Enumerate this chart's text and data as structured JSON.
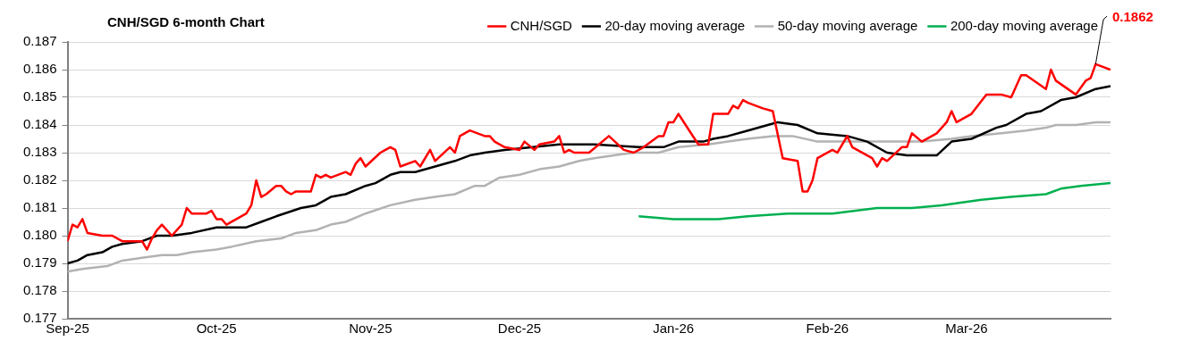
{
  "chart_data": {
    "type": "line",
    "title": "CNH/SGD 6-month Chart",
    "legend": "top right",
    "grid": "y",
    "marker": "none",
    "line_style": "solid",
    "xlim": [
      "2025-09-01",
      "2026-03-30"
    ],
    "xticks": [
      {
        "value": "2025-09-01",
        "label": "Sep-25"
      },
      {
        "value": "2025-10-01",
        "label": "Oct-25"
      },
      {
        "value": "2025-11-01",
        "label": "Nov-25"
      },
      {
        "value": "2025-12-01",
        "label": "Dec-25"
      },
      {
        "value": "2026-01-01",
        "label": "Jan-26"
      },
      {
        "value": "2026-02-01",
        "label": "Feb-26"
      },
      {
        "value": "2026-03-01",
        "label": "Mar-26"
      }
    ],
    "ylim": [
      0.177,
      0.187
    ],
    "yticks": [
      0.177,
      0.178,
      0.179,
      {
        "value": 0.18,
        "label": "0.180"
      },
      0.181,
      0.182,
      0.183,
      0.184,
      0.185,
      0.186,
      0.187
    ],
    "annotations": [
      {
        "text": "0.1862",
        "x": "2026-03-27",
        "y": 0.1862
      }
    ],
    "series": [
      {
        "name": "CNH/SGD",
        "color": "#ff0000",
        "x": [
          "2025-09-01",
          "2025-09-02",
          "2025-09-03",
          "2025-09-04",
          "2025-09-05",
          "2025-09-08",
          "2025-09-09",
          "2025-09-10",
          "2025-09-12",
          "2025-09-14",
          "2025-09-16",
          "2025-09-17",
          "2025-09-18",
          "2025-09-19",
          "2025-09-20",
          "2025-09-21",
          "2025-09-22",
          "2025-09-24",
          "2025-09-25",
          "2025-09-26",
          "2025-09-29",
          "2025-09-30",
          "2025-10-01",
          "2025-10-02",
          "2025-10-03",
          "2025-10-05",
          "2025-10-07",
          "2025-10-08",
          "2025-10-09",
          "2025-10-10",
          "2025-10-11",
          "2025-10-13",
          "2025-10-14",
          "2025-10-15",
          "2025-10-16",
          "2025-10-17",
          "2025-10-20",
          "2025-10-21",
          "2025-10-22",
          "2025-10-23",
          "2025-10-24",
          "2025-10-27",
          "2025-10-28",
          "2025-10-29",
          "2025-10-30",
          "2025-10-31",
          "2025-11-03",
          "2025-11-04",
          "2025-11-05",
          "2025-11-06",
          "2025-11-07",
          "2025-11-10",
          "2025-11-11",
          "2025-11-13",
          "2025-11-14",
          "2025-11-17",
          "2025-11-18",
          "2025-11-19",
          "2025-11-21",
          "2025-11-24",
          "2025-11-25",
          "2025-11-26",
          "2025-11-28",
          "2025-12-01",
          "2025-12-02",
          "2025-12-04",
          "2025-12-05",
          "2025-12-08",
          "2025-12-09",
          "2025-12-10",
          "2025-12-11",
          "2025-12-12",
          "2025-12-15",
          "2025-12-17",
          "2025-12-19",
          "2025-12-22",
          "2025-12-24",
          "2025-12-26",
          "2025-12-29",
          "2025-12-30",
          "2025-12-31",
          "2026-01-01",
          "2026-01-02",
          "2026-01-06",
          "2026-01-08",
          "2026-01-09",
          "2026-01-12",
          "2026-01-13",
          "2026-01-14",
          "2026-01-15",
          "2026-01-16",
          "2026-01-19",
          "2026-01-21",
          "2026-01-23",
          "2026-01-26",
          "2026-01-27",
          "2026-01-28",
          "2026-01-29",
          "2026-01-30",
          "2026-02-02",
          "2026-02-03",
          "2026-02-05",
          "2026-02-06",
          "2026-02-10",
          "2026-02-11",
          "2026-02-12",
          "2026-02-13",
          "2026-02-16",
          "2026-02-17",
          "2026-02-18",
          "2026-02-20",
          "2026-02-23",
          "2026-02-25",
          "2026-02-26",
          "2026-02-27",
          "2026-03-02",
          "2026-03-05",
          "2026-03-08",
          "2026-03-10",
          "2026-03-12",
          "2026-03-13",
          "2026-03-17",
          "2026-03-18",
          "2026-03-19",
          "2026-03-23",
          "2026-03-25",
          "2026-03-26",
          "2026-03-27",
          "2026-03-30"
        ],
        "values": [
          0.1798,
          0.1804,
          0.1803,
          0.1806,
          0.1801,
          0.18,
          0.18,
          0.18,
          0.1798,
          0.1798,
          0.1798,
          0.1795,
          0.1799,
          0.1802,
          0.1804,
          0.1802,
          0.18,
          0.1804,
          0.181,
          0.1808,
          0.1808,
          0.1809,
          0.1806,
          0.1806,
          0.1804,
          0.1806,
          0.1808,
          0.1811,
          0.182,
          0.1814,
          0.1815,
          0.1818,
          0.1818,
          0.1816,
          0.1815,
          0.1816,
          0.1816,
          0.1822,
          0.1821,
          0.1822,
          0.1821,
          0.1823,
          0.1822,
          0.1826,
          0.1828,
          0.1825,
          0.183,
          0.1831,
          0.1832,
          0.1831,
          0.1825,
          0.1827,
          0.1825,
          0.1831,
          0.1827,
          0.1832,
          0.183,
          0.1836,
          0.1838,
          0.1836,
          0.1836,
          0.1834,
          0.1832,
          0.1831,
          0.1834,
          0.1831,
          0.1833,
          0.1834,
          0.1836,
          0.183,
          0.1831,
          0.183,
          0.183,
          0.1833,
          0.1836,
          0.1831,
          0.183,
          0.1832,
          0.1836,
          0.1836,
          0.1841,
          0.1841,
          0.1844,
          0.1833,
          0.1833,
          0.1844,
          0.1844,
          0.1847,
          0.1846,
          0.1849,
          0.1848,
          0.1846,
          0.1845,
          0.1828,
          0.1827,
          0.1816,
          0.1816,
          0.182,
          0.1828,
          0.1831,
          0.183,
          0.1836,
          0.1832,
          0.1828,
          0.1825,
          0.1828,
          0.1827,
          0.1832,
          0.1832,
          0.1837,
          0.1834,
          0.1837,
          0.1841,
          0.1845,
          0.1841,
          0.1844,
          0.1851,
          0.1851,
          0.185,
          0.1858,
          0.1858,
          0.1853,
          0.186,
          0.1856,
          0.1851,
          0.1856,
          0.1857,
          0.1862,
          0.186
        ]
      },
      {
        "name": "20-day moving average",
        "color": "#000000",
        "x": [
          "2025-09-01",
          "2025-09-03",
          "2025-09-05",
          "2025-09-08",
          "2025-09-10",
          "2025-09-12",
          "2025-09-16",
          "2025-09-19",
          "2025-09-22",
          "2025-09-26",
          "2025-10-01",
          "2025-10-07",
          "2025-10-10",
          "2025-10-13",
          "2025-10-18",
          "2025-10-21",
          "2025-10-24",
          "2025-10-27",
          "2025-10-31",
          "2025-11-02",
          "2025-11-05",
          "2025-11-07",
          "2025-11-10",
          "2025-11-14",
          "2025-11-18",
          "2025-11-21",
          "2025-11-24",
          "2025-11-28",
          "2025-12-09",
          "2025-12-16",
          "2025-12-25",
          "2025-12-30",
          "2026-01-02",
          "2026-01-07",
          "2026-01-09",
          "2026-01-12",
          "2026-01-16",
          "2026-01-20",
          "2026-01-22",
          "2026-01-26",
          "2026-01-30",
          "2026-02-05",
          "2026-02-09",
          "2026-02-13",
          "2026-02-17",
          "2026-02-19",
          "2026-02-23",
          "2026-02-26",
          "2026-03-02",
          "2026-03-07",
          "2026-03-09",
          "2026-03-13",
          "2026-03-16",
          "2026-03-20",
          "2026-03-23",
          "2026-03-27",
          "2026-03-30"
        ],
        "values": [
          0.179,
          0.1791,
          0.1793,
          0.1794,
          0.1796,
          0.1797,
          0.1798,
          0.18,
          0.18,
          0.1801,
          0.1803,
          0.1803,
          0.1805,
          0.1807,
          0.181,
          0.1811,
          0.1814,
          0.1815,
          0.1818,
          0.1819,
          0.1822,
          0.1823,
          0.1823,
          0.1825,
          0.1827,
          0.1829,
          0.183,
          0.1831,
          0.1833,
          0.1833,
          0.1832,
          0.1832,
          0.1834,
          0.1834,
          0.1835,
          0.1836,
          0.1838,
          0.184,
          0.1841,
          0.184,
          0.1837,
          0.1836,
          0.1834,
          0.183,
          0.1829,
          0.1829,
          0.1829,
          0.1834,
          0.1835,
          0.1839,
          0.184,
          0.1844,
          0.1845,
          0.1849,
          0.185,
          0.1853,
          0.1854
        ]
      },
      {
        "name": "50-day moving average",
        "color": "#b2b2b2",
        "x": [
          "2025-09-01",
          "2025-09-04",
          "2025-09-09",
          "2025-09-12",
          "2025-09-16",
          "2025-09-20",
          "2025-09-23",
          "2025-09-26",
          "2025-10-01",
          "2025-10-04",
          "2025-10-09",
          "2025-10-14",
          "2025-10-17",
          "2025-10-21",
          "2025-10-24",
          "2025-10-27",
          "2025-10-31",
          "2025-11-05",
          "2025-11-10",
          "2025-11-14",
          "2025-11-18",
          "2025-11-22",
          "2025-11-24",
          "2025-11-27",
          "2025-12-01",
          "2025-12-05",
          "2025-12-09",
          "2025-12-13",
          "2025-12-16",
          "2025-12-20",
          "2025-12-24",
          "2025-12-29",
          "2026-01-02",
          "2026-01-08",
          "2026-01-12",
          "2026-01-16",
          "2026-01-21",
          "2026-01-25",
          "2026-01-30",
          "2026-02-13",
          "2026-02-20",
          "2026-02-26",
          "2026-03-02",
          "2026-03-08",
          "2026-03-13",
          "2026-03-17",
          "2026-03-19",
          "2026-03-23",
          "2026-03-27",
          "2026-03-30"
        ],
        "values": [
          0.1787,
          0.1788,
          0.1789,
          0.1791,
          0.1792,
          0.1793,
          0.1793,
          0.1794,
          0.1795,
          0.1796,
          0.1798,
          0.1799,
          0.1801,
          0.1802,
          0.1804,
          0.1805,
          0.1808,
          0.1811,
          0.1813,
          0.1814,
          0.1815,
          0.1818,
          0.1818,
          0.1821,
          0.1822,
          0.1824,
          0.1825,
          0.1827,
          0.1828,
          0.1829,
          0.183,
          0.183,
          0.1832,
          0.1833,
          0.1834,
          0.1835,
          0.1836,
          0.1836,
          0.1834,
          0.1834,
          0.1834,
          0.1835,
          0.1836,
          0.1837,
          0.1838,
          0.1839,
          0.184,
          0.184,
          0.1841,
          0.1841
        ]
      },
      {
        "name": "200-day moving average",
        "color": "#00b050",
        "x": [
          "2025-12-25",
          "2026-01-01",
          "2026-01-10",
          "2026-01-16",
          "2026-01-24",
          "2026-02-02",
          "2026-02-11",
          "2026-02-18",
          "2026-02-24",
          "2026-03-04",
          "2026-03-10",
          "2026-03-17",
          "2026-03-20",
          "2026-03-24",
          "2026-03-30"
        ],
        "values": [
          0.1807,
          0.1806,
          0.1806,
          0.1807,
          0.1808,
          0.1808,
          0.181,
          0.181,
          0.1811,
          0.1813,
          0.1814,
          0.1815,
          0.1817,
          0.1818,
          0.1819
        ]
      }
    ]
  }
}
